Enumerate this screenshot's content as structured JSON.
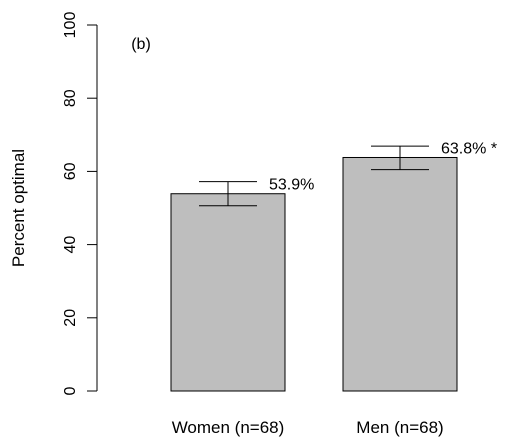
{
  "chart_data": {
    "type": "bar",
    "panel_label": "(b)",
    "title": "",
    "xlabel": "",
    "ylabel": "Percent optimal",
    "ylim": [
      0,
      100
    ],
    "yticks": [
      0,
      20,
      40,
      60,
      80,
      100
    ],
    "categories": [
      "Women (n=68)",
      "Men (n=68)"
    ],
    "values": [
      53.9,
      63.8
    ],
    "error_low": [
      50.6,
      60.5
    ],
    "error_high": [
      57.2,
      66.9
    ],
    "value_labels": [
      "53.9%",
      "63.8% *"
    ],
    "bar_color": "#bebebe",
    "grid": false
  }
}
